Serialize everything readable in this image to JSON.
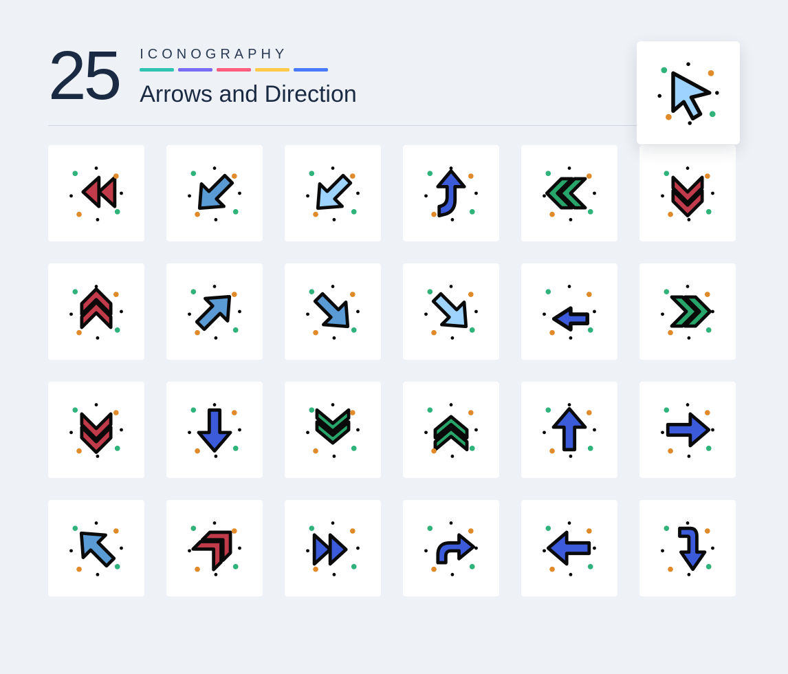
{
  "header": {
    "count": "25",
    "eyebrow": "ICONOGRAPHY",
    "title": "Arrows and Direction",
    "strip_colors": [
      "#2fc4b2",
      "#7b6cf6",
      "#ff5e7e",
      "#ffc94a",
      "#4a7bff"
    ]
  },
  "palette": {
    "outline": "#0a0a0a",
    "blue_light": "#9fd3ff",
    "blue": "#3b5bdb",
    "blue_mid": "#5b9bd5",
    "green": "#28a56a",
    "green_dot": "#2fb37a",
    "red": "#c23b4b",
    "orange_dot": "#e08a2a",
    "white": "#ffffff",
    "card_bg": "#ffffff",
    "page_bg": "#eef1f5"
  },
  "feature_icon": {
    "name": "cursor-arrow-icon",
    "fill_key": "blue_light"
  },
  "icons": [
    {
      "name": "rewind-double-left-icon",
      "shape": "double-tri",
      "dir": "left",
      "fill_key": "red"
    },
    {
      "name": "arrow-down-left-dots-icon",
      "shape": "arrow",
      "dir": "down-left",
      "fill_key": "blue_mid"
    },
    {
      "name": "arrow-down-left-light-icon",
      "shape": "arrow",
      "dir": "down-left",
      "fill_key": "blue_light"
    },
    {
      "name": "arrow-merge-up-icon",
      "shape": "merge-up",
      "dir": "up",
      "fill_key": "blue"
    },
    {
      "name": "chevrons-left-green-icon",
      "shape": "double-chev",
      "dir": "left",
      "fill_key": "green"
    },
    {
      "name": "chevrons-down-red-icon",
      "shape": "double-chev",
      "dir": "down",
      "fill_key": "red"
    },
    {
      "name": "chevrons-up-red-icon",
      "shape": "double-chev",
      "dir": "up",
      "fill_key": "red"
    },
    {
      "name": "arrow-up-right-dots-icon",
      "shape": "arrow",
      "dir": "up-right",
      "fill_key": "blue_mid"
    },
    {
      "name": "arrow-down-right-mid-icon",
      "shape": "arrow",
      "dir": "down-right",
      "fill_key": "blue_mid"
    },
    {
      "name": "arrow-down-right-light-icon",
      "shape": "arrow",
      "dir": "down-right",
      "fill_key": "blue_light"
    },
    {
      "name": "arrow-back-left-icon",
      "shape": "back-left",
      "dir": "left",
      "fill_key": "blue"
    },
    {
      "name": "chevrons-right-green-icon",
      "shape": "double-chev",
      "dir": "right",
      "fill_key": "green"
    },
    {
      "name": "chevrons-down-red-2-icon",
      "shape": "double-chev",
      "dir": "down",
      "fill_key": "red"
    },
    {
      "name": "arrow-down-blue-icon",
      "shape": "arrow",
      "dir": "down",
      "fill_key": "blue"
    },
    {
      "name": "rank-chevron-down-icon",
      "shape": "rank-chev",
      "dir": "down",
      "fill_key": "green"
    },
    {
      "name": "rank-chevron-up-icon",
      "shape": "rank-chev",
      "dir": "up",
      "fill_key": "green"
    },
    {
      "name": "arrow-up-blue-icon",
      "shape": "arrow",
      "dir": "up",
      "fill_key": "blue"
    },
    {
      "name": "arrow-right-blue-icon",
      "shape": "arrow",
      "dir": "right",
      "fill_key": "blue"
    },
    {
      "name": "arrow-up-left-mid-icon",
      "shape": "arrow",
      "dir": "up-left",
      "fill_key": "blue_mid"
    },
    {
      "name": "chevrons-up-right-red-icon",
      "shape": "double-chev",
      "dir": "up-right",
      "fill_key": "red"
    },
    {
      "name": "forward-double-right-icon",
      "shape": "double-tri",
      "dir": "right",
      "fill_key": "blue"
    },
    {
      "name": "arrow-reply-right-icon",
      "shape": "reply",
      "dir": "right",
      "fill_key": "blue"
    },
    {
      "name": "arrow-left-blue-icon",
      "shape": "arrow",
      "dir": "left",
      "fill_key": "blue"
    },
    {
      "name": "arrow-turn-down-icon",
      "shape": "turn-down",
      "dir": "down",
      "fill_key": "blue"
    }
  ]
}
